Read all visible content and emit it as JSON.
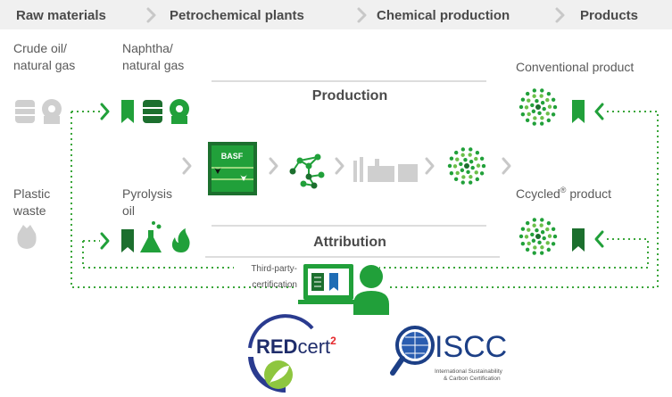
{
  "stages": [
    "Raw materials",
    "Petrochemical plants",
    "Chemical production",
    "Products"
  ],
  "inputs": {
    "crude": [
      "Crude oil/",
      "natural gas"
    ],
    "naphtha": [
      "Naphtha/",
      "natural gas"
    ],
    "plastic": [
      "Plastic",
      "waste"
    ],
    "pyrolysis": [
      "Pyrolysis",
      "oil"
    ]
  },
  "products": {
    "conventional": "Conventional product",
    "ccycled": [
      "Ccycled",
      "®",
      " product"
    ]
  },
  "sections": {
    "production": "Production",
    "attribution": "Attribution"
  },
  "plant_label": "BASF",
  "certification": [
    "Third-party-",
    "certification"
  ],
  "logos": {
    "redcert": {
      "name": [
        "RED",
        "cert"
      ],
      "superscript": "2"
    },
    "iscc": {
      "name": "ISCC",
      "subtitle": [
        "International Sustainability",
        "& Carbon Certification"
      ]
    }
  }
}
